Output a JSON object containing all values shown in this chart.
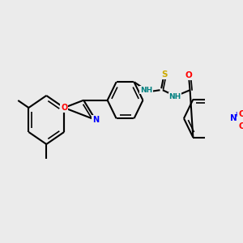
{
  "background_color": "#ebebeb",
  "bond_color": "#000000",
  "atom_colors": {
    "O": "#ff0000",
    "N": "#0000ff",
    "S": "#ccaa00",
    "NH_color": "#008080",
    "C": "#000000"
  },
  "figsize": [
    3.0,
    3.0
  ],
  "dpi": 100
}
